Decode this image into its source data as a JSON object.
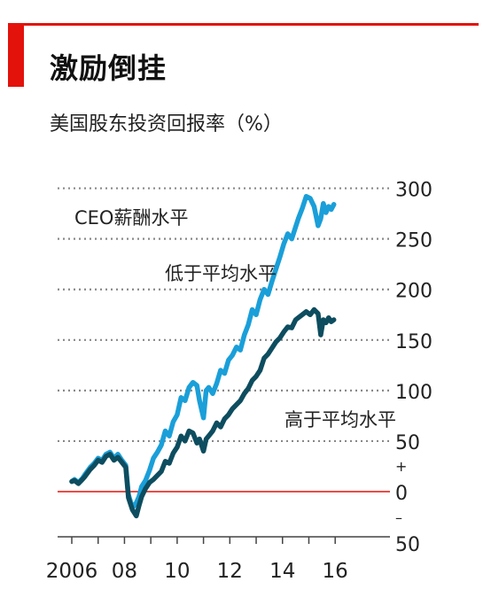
{
  "header": {
    "title": "激励倒挂",
    "subtitle": "美国股东投资回报率（%）"
  },
  "colors": {
    "accent": "#e3120b",
    "series_low": "#1a9fd9",
    "series_high": "#0d4d5f",
    "zero_line": "#e3120b",
    "grid": "#888888"
  },
  "chart_data": {
    "type": "line",
    "title": "激励倒挂",
    "subtitle": "美国股东投资回报率（%）",
    "xlabel": "",
    "ylabel": "",
    "x_tick_labels": [
      "2006",
      "08",
      "10",
      "12",
      "14",
      "16"
    ],
    "x_ticks": [
      2006,
      2008,
      2010,
      2012,
      2014,
      2016
    ],
    "xlim": [
      2005.9,
      2016.2
    ],
    "ylim": [
      -50,
      300
    ],
    "y_ticks": [
      -50,
      0,
      50,
      100,
      150,
      200,
      250,
      300
    ],
    "y_tick_labels": [
      "50",
      "0",
      "50",
      "100",
      "150",
      "200",
      "250",
      "300"
    ],
    "sign_markers": {
      "plus": "+",
      "minus": "–"
    },
    "grid": "dotted horizontal",
    "baseline": 0,
    "annotations": [
      "CEO薪酬水平"
    ],
    "series": [
      {
        "name": "低于平均水平",
        "x": [
          2006.0,
          2006.1,
          2006.25,
          2006.4,
          2006.5,
          2006.7,
          2006.85,
          2007.0,
          2007.15,
          2007.3,
          2007.45,
          2007.6,
          2007.75,
          2007.9,
          2008.05,
          2008.15,
          2008.3,
          2008.45,
          2008.55,
          2008.65,
          2008.8,
          2008.95,
          2009.1,
          2009.25,
          2009.4,
          2009.55,
          2009.7,
          2009.85,
          2010.0,
          2010.15,
          2010.3,
          2010.45,
          2010.6,
          2010.75,
          2010.85,
          2011.0,
          2011.1,
          2011.2,
          2011.35,
          2011.5,
          2011.65,
          2011.8,
          2011.95,
          2012.1,
          2012.25,
          2012.4,
          2012.55,
          2012.7,
          2012.85,
          2013.0,
          2013.15,
          2013.3,
          2013.45,
          2013.6,
          2013.75,
          2013.9,
          2014.05,
          2014.2,
          2014.35,
          2014.5,
          2014.6,
          2014.75,
          2014.9,
          2015.05,
          2015.2,
          2015.35,
          2015.45,
          2015.55,
          2015.65,
          2015.75,
          2015.85,
          2015.95
        ],
        "values": [
          10,
          12,
          9,
          13,
          17,
          24,
          28,
          33,
          31,
          37,
          39,
          33,
          37,
          31,
          26,
          -3,
          -16,
          -11,
          -5,
          5,
          11,
          21,
          33,
          39,
          46,
          60,
          55,
          69,
          76,
          93,
          90,
          103,
          108,
          105,
          90,
          73,
          100,
          103,
          97,
          107,
          120,
          117,
          130,
          135,
          143,
          140,
          155,
          165,
          180,
          175,
          190,
          200,
          195,
          208,
          220,
          232,
          245,
          255,
          250,
          262,
          270,
          280,
          292,
          290,
          282,
          263,
          270,
          285,
          276,
          282,
          279,
          284
        ]
      },
      {
        "name": "高于平均水平",
        "x": [
          2006.0,
          2006.1,
          2006.25,
          2006.4,
          2006.5,
          2006.7,
          2006.85,
          2007.0,
          2007.15,
          2007.3,
          2007.45,
          2007.6,
          2007.75,
          2007.9,
          2008.05,
          2008.15,
          2008.3,
          2008.45,
          2008.55,
          2008.65,
          2008.8,
          2008.95,
          2009.1,
          2009.25,
          2009.4,
          2009.55,
          2009.7,
          2009.85,
          2010.0,
          2010.15,
          2010.3,
          2010.45,
          2010.6,
          2010.75,
          2010.85,
          2011.0,
          2011.1,
          2011.2,
          2011.35,
          2011.5,
          2011.65,
          2011.8,
          2011.95,
          2012.1,
          2012.25,
          2012.4,
          2012.55,
          2012.7,
          2012.85,
          2013.0,
          2013.15,
          2013.3,
          2013.45,
          2013.6,
          2013.75,
          2013.9,
          2014.05,
          2014.2,
          2014.35,
          2014.5,
          2014.6,
          2014.75,
          2014.9,
          2015.05,
          2015.2,
          2015.35,
          2015.45,
          2015.55,
          2015.65,
          2015.75,
          2015.85,
          2015.95
        ],
        "values": [
          10,
          11,
          8,
          12,
          15,
          22,
          26,
          31,
          29,
          35,
          37,
          31,
          34,
          29,
          24,
          -6,
          -18,
          -24,
          -14,
          -5,
          3,
          9,
          12,
          16,
          20,
          30,
          28,
          38,
          44,
          55,
          50,
          60,
          58,
          48,
          52,
          40,
          52,
          55,
          60,
          68,
          64,
          72,
          76,
          82,
          86,
          90,
          97,
          102,
          110,
          114,
          120,
          132,
          136,
          142,
          148,
          152,
          158,
          163,
          162,
          170,
          172,
          175,
          178,
          175,
          180,
          176,
          155,
          170,
          167,
          172,
          168,
          170
        ]
      }
    ]
  }
}
